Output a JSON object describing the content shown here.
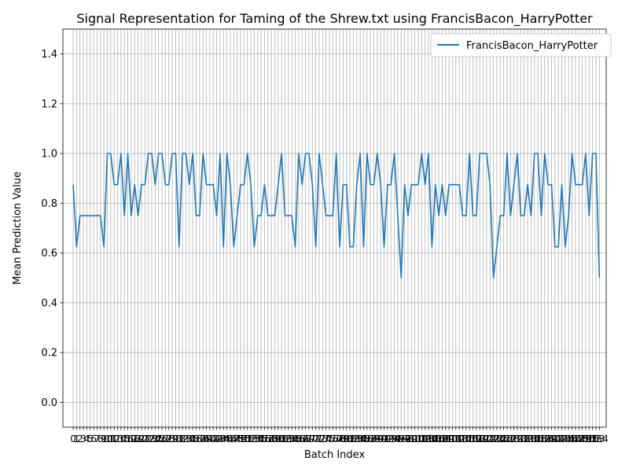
{
  "chart_data": {
    "type": "line",
    "title": "Signal Representation for Taming of the Shrew.txt using FrancisBacon_HarryPotter",
    "xlabel": "Batch Index",
    "ylabel": "Mean Prediction Value",
    "ylim": [
      -0.1,
      1.5
    ],
    "xlim": [
      -3,
      156
    ],
    "yticks": [
      "0.0",
      "0.2",
      "0.4",
      "0.6",
      "0.8",
      "1.0",
      "1.2",
      "1.4"
    ],
    "ytick_values": [
      0.0,
      0.2,
      0.4,
      0.6,
      0.8,
      1.0,
      1.2,
      1.4
    ],
    "grid": true,
    "legend_position": "top-right",
    "series": [
      {
        "name": "FrancisBacon_HarryPotter",
        "color": "#1f77b4",
        "values": [
          0.875,
          0.625,
          0.75,
          0.75,
          0.75,
          0.75,
          0.75,
          0.75,
          0.75,
          0.625,
          1.0,
          1.0,
          0.875,
          0.875,
          1.0,
          0.75,
          1.0,
          0.75,
          0.875,
          0.75,
          0.875,
          0.875,
          1.0,
          1.0,
          0.875,
          1.0,
          1.0,
          0.875,
          0.875,
          1.0,
          1.0,
          0.625,
          1.0,
          1.0,
          0.875,
          1.0,
          0.75,
          0.75,
          1.0,
          0.875,
          0.875,
          0.875,
          0.75,
          1.0,
          0.625,
          1.0,
          0.875,
          0.625,
          0.75,
          0.875,
          0.875,
          1.0,
          0.875,
          0.625,
          0.75,
          0.75,
          0.875,
          0.75,
          0.75,
          0.75,
          0.875,
          1.0,
          0.75,
          0.75,
          0.75,
          0.625,
          1.0,
          0.875,
          1.0,
          1.0,
          0.875,
          0.625,
          1.0,
          0.875,
          0.75,
          0.75,
          0.75,
          1.0,
          0.625,
          0.875,
          0.875,
          0.625,
          0.625,
          0.875,
          1.0,
          0.625,
          1.0,
          0.875,
          0.875,
          1.0,
          0.875,
          0.625,
          0.875,
          0.875,
          1.0,
          0.75,
          0.5,
          0.875,
          0.75,
          0.875,
          0.875,
          0.875,
          1.0,
          0.875,
          1.0,
          0.625,
          0.875,
          0.75,
          0.875,
          0.75,
          0.875,
          0.875,
          0.875,
          0.875,
          0.75,
          0.75,
          1.0,
          0.75,
          0.75,
          1.0,
          1.0,
          1.0,
          0.875,
          0.5,
          0.625,
          0.75,
          0.75,
          1.0,
          0.75,
          0.875,
          1.0,
          0.75,
          0.75,
          0.875,
          0.75,
          1.0,
          1.0,
          0.75,
          1.0,
          0.875,
          0.875,
          0.625,
          0.625,
          0.875,
          0.625,
          0.75,
          1.0,
          0.875,
          0.875,
          0.875,
          1.0,
          0.75,
          1.0,
          1.0,
          0.5
        ]
      }
    ]
  }
}
